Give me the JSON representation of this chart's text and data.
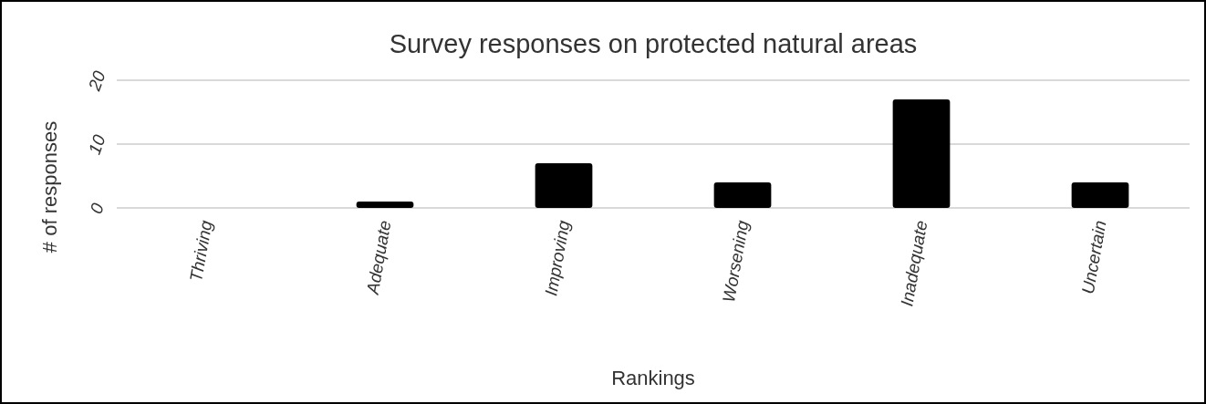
{
  "chart_data": {
    "type": "bar",
    "title": "Survey responses on protected natural areas",
    "xlabel": "Rankings",
    "ylabel": "# of responses",
    "categories": [
      "Thriving",
      "Adequate",
      "Improving",
      "Worsening",
      "Inadequate",
      "Uncertain"
    ],
    "values": [
      0,
      1,
      7,
      4,
      17,
      4
    ],
    "color": "#000000",
    "ylim": [
      0,
      20
    ],
    "yticks": [
      0,
      10,
      20
    ],
    "grid": "y"
  }
}
